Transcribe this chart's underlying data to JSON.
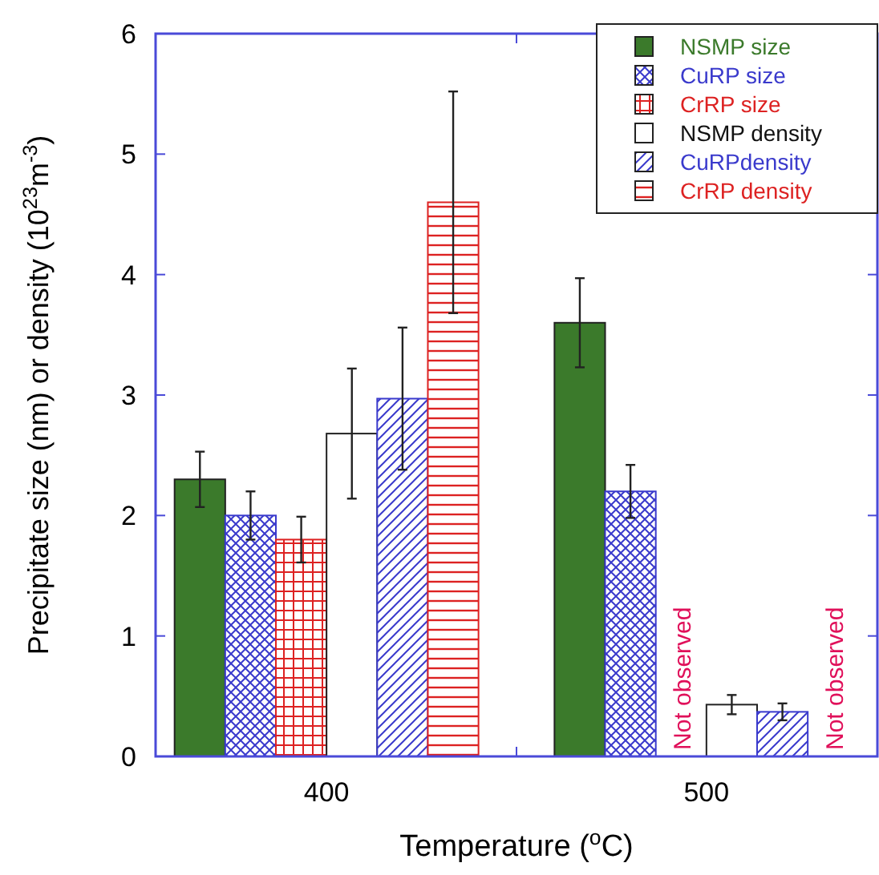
{
  "chart_data": {
    "type": "bar",
    "xlabel": "Temperature ($^{o}$C)",
    "ylabel": "Precipitate size (nm) or density (10$^{23}$m$^{-3}$)",
    "categories": [
      "400",
      "500"
    ],
    "ylim": [
      0,
      6
    ],
    "yticks": [
      0,
      1,
      2,
      3,
      4,
      5,
      6
    ],
    "legend": "top right",
    "grid": false,
    "series": [
      {
        "name": "NSMP size",
        "color": "#3b7a2b",
        "values": [
          2.3,
          3.6
        ],
        "errors": [
          0.23,
          0.37
        ]
      },
      {
        "name": "CuRP size",
        "color": "#3a3acc",
        "values": [
          2.0,
          2.2
        ],
        "errors": [
          0.2,
          0.22
        ]
      },
      {
        "name": "CrRP size",
        "color": "#dd2222",
        "values": [
          1.8,
          null
        ],
        "errors": [
          0.19,
          null
        ]
      },
      {
        "name": "NSMP density",
        "color": "#ffffff",
        "values": [
          2.68,
          0.43
        ],
        "errors": [
          0.54,
          0.08
        ]
      },
      {
        "name": "CuRPdensity",
        "color": "#3a3acc",
        "values": [
          2.97,
          0.37
        ],
        "errors": [
          0.59,
          0.07
        ]
      },
      {
        "name": "CrRP density",
        "color": "#dd2222",
        "values": [
          4.6,
          null
        ],
        "errors": [
          0.92,
          null
        ]
      }
    ],
    "annotations": [
      "Not observed",
      "Not observed"
    ]
  }
}
